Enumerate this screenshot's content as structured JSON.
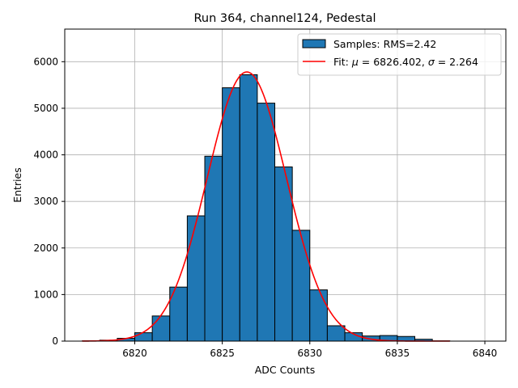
{
  "chart_data": {
    "type": "bar",
    "title": "Run 364, channel124, Pedestal",
    "xlabel": "ADC Counts",
    "ylabel": "Entries",
    "xlim": [
      6816,
      6841.2
    ],
    "ylim": [
      0,
      6700
    ],
    "grid": true,
    "xticks": [
      6820,
      6825,
      6830,
      6835,
      6840
    ],
    "xtick_labels": [
      "6820",
      "6825",
      "6830",
      "6835",
      "6840"
    ],
    "yticks": [
      0,
      1000,
      2000,
      3000,
      4000,
      5000,
      6000
    ],
    "ytick_labels": [
      "0",
      "1000",
      "2000",
      "3000",
      "4000",
      "5000",
      "6000"
    ],
    "series": [
      {
        "name": "Samples: RMS=2.42",
        "kind": "histogram",
        "color": "#1f77b4",
        "edgecolor": "#000000",
        "bin_width": 1,
        "bin_left_edges": [
          6817,
          6818,
          6819,
          6820,
          6821,
          6822,
          6823,
          6824,
          6825,
          6826,
          6827,
          6828,
          6829,
          6830,
          6831,
          6832,
          6833,
          6834,
          6835,
          6836,
          6837
        ],
        "values": [
          5,
          20,
          60,
          180,
          540,
          1160,
          2690,
          3970,
          5440,
          5720,
          5110,
          3740,
          2380,
          1100,
          330,
          180,
          110,
          120,
          100,
          40,
          5
        ]
      },
      {
        "name": "Fit: μ = 6826.402, σ = 2.264",
        "kind": "gaussian_fit",
        "color": "#ff0000",
        "mu": 6826.402,
        "sigma": 2.264,
        "amplitude": 5780,
        "x_range": [
          6817,
          6838
        ]
      }
    ],
    "legend": {
      "position": "top-right",
      "entries": [
        {
          "label": "Samples: RMS=2.42",
          "marker": "patch"
        },
        {
          "label_prefix": "Fit: ",
          "mu_symbol": "μ",
          "mu_text": " = 6826.402, ",
          "sigma_symbol": "σ",
          "sigma_text": " = 2.264",
          "marker": "line"
        }
      ]
    }
  }
}
